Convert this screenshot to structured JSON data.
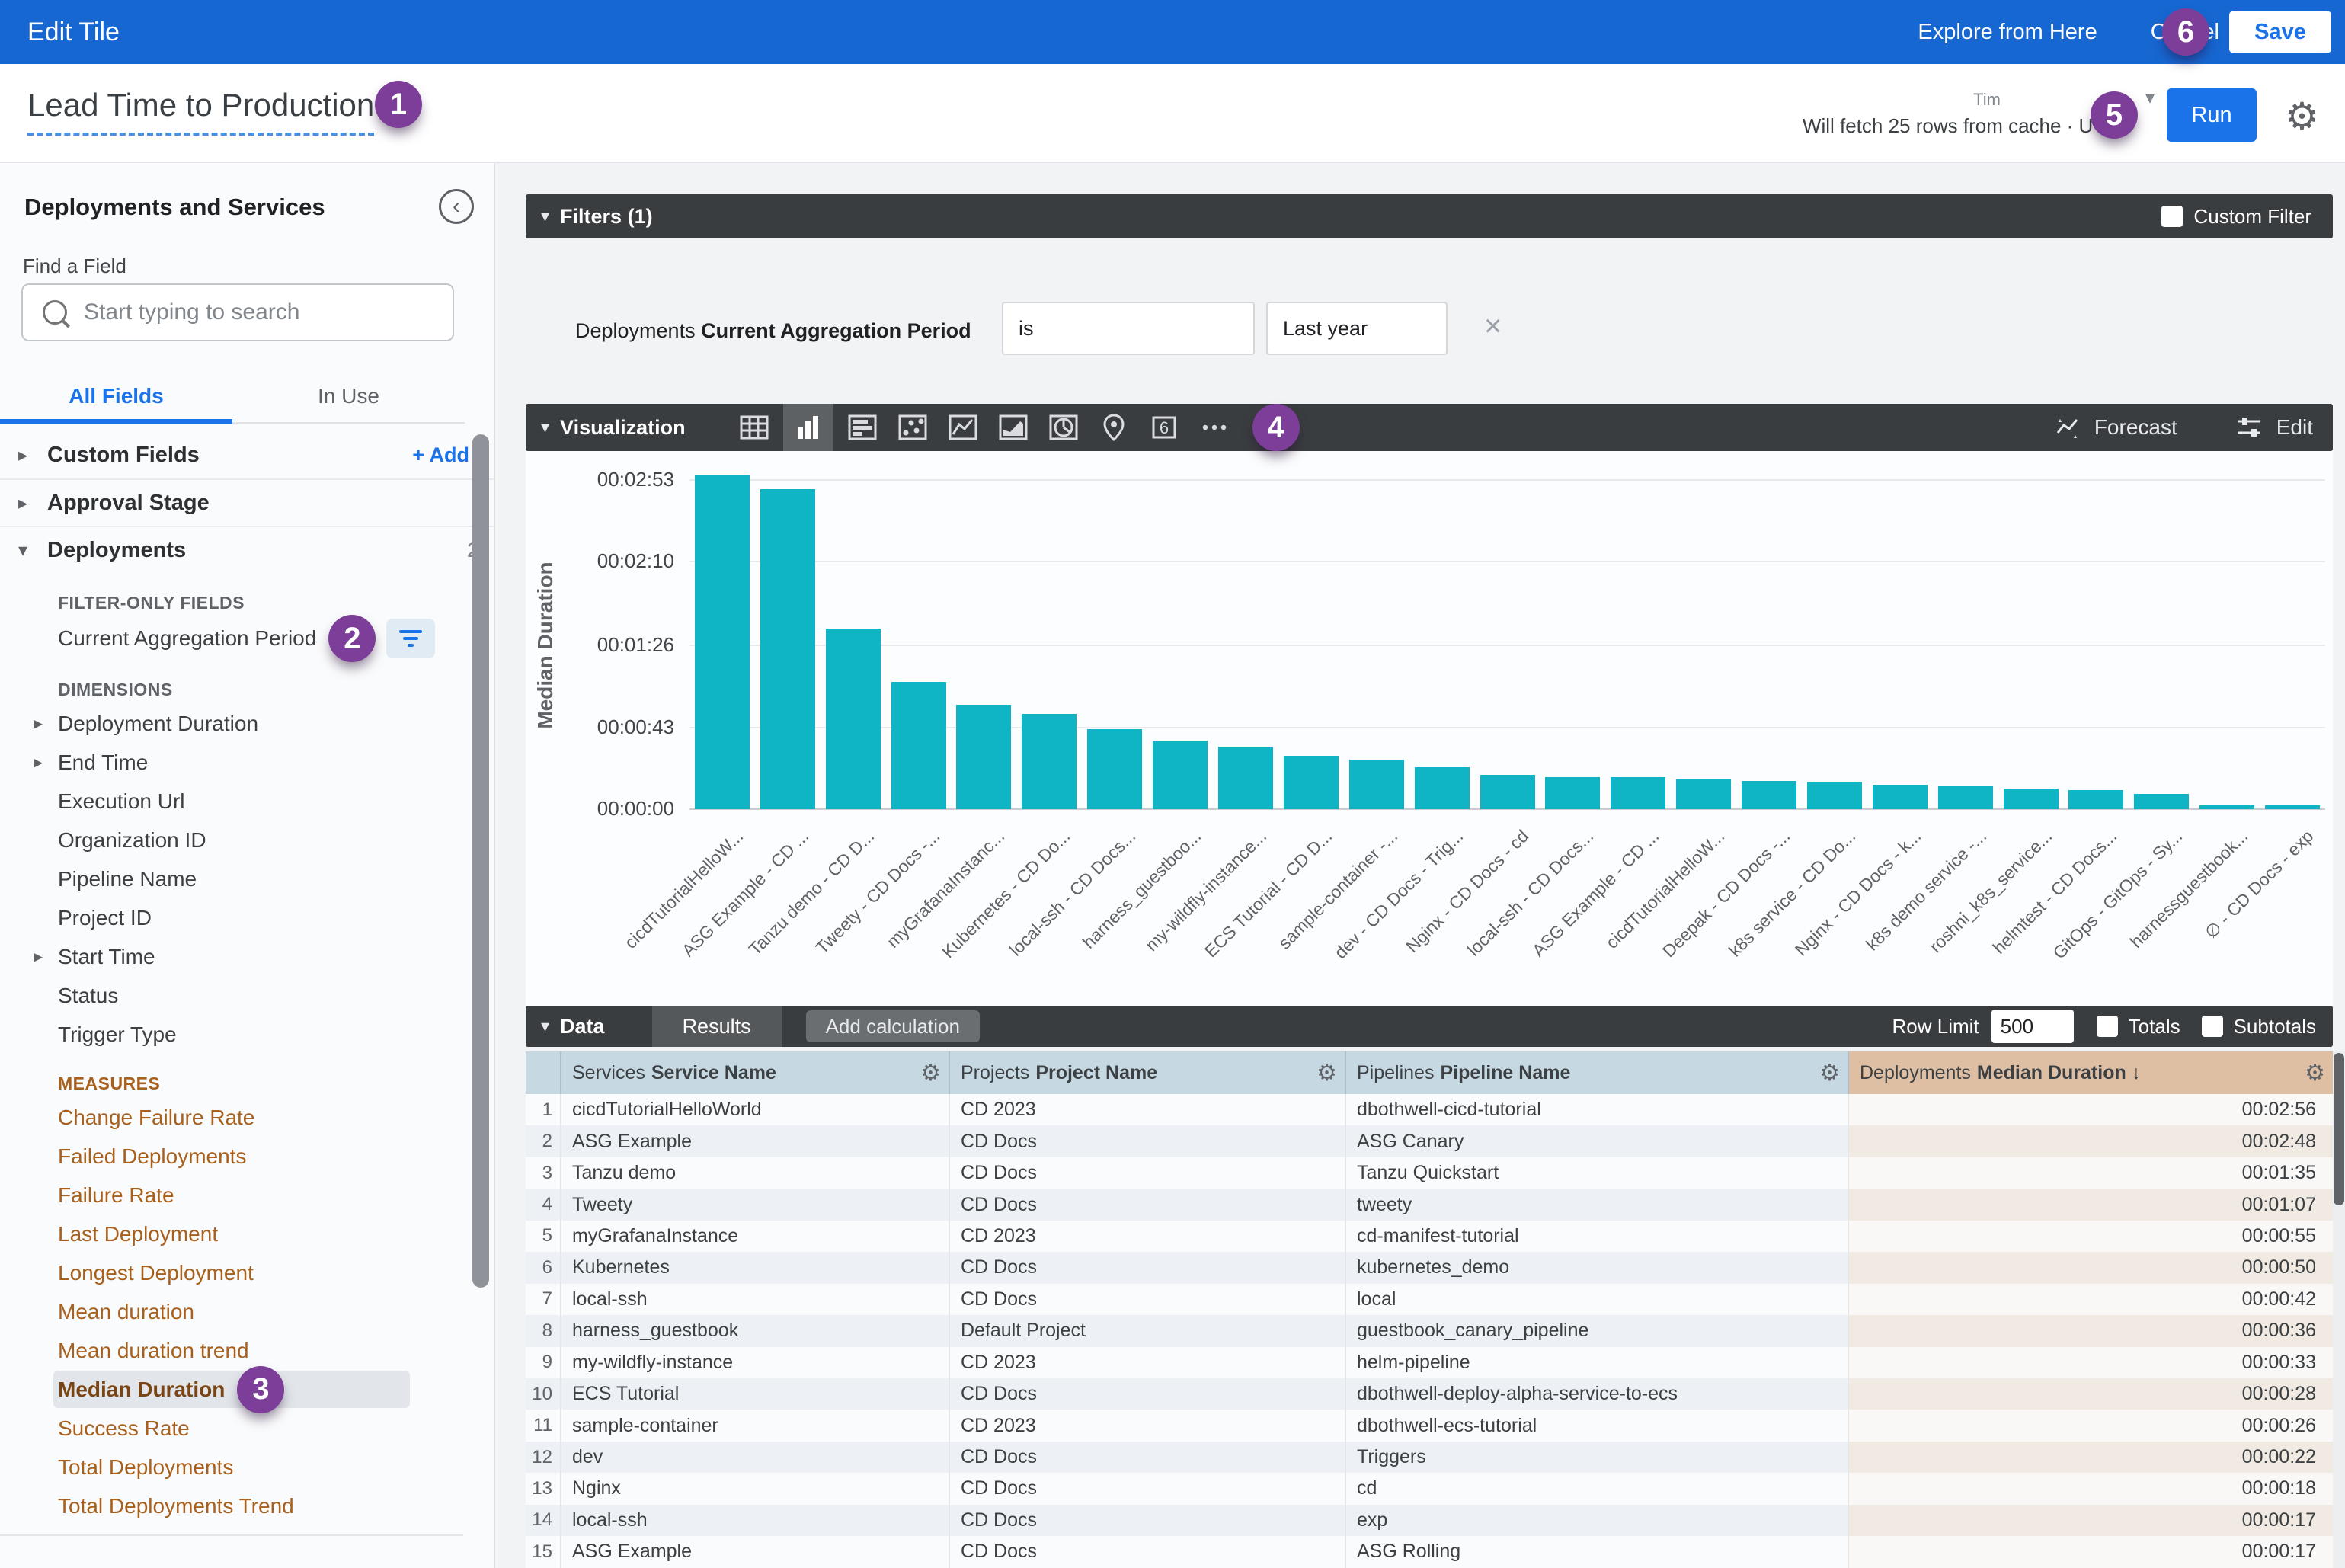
{
  "colors": {
    "topbar": "#1767d2",
    "accent": "#1a73e8",
    "bar_teal": "#0fb5c4",
    "badge_purple": "#7c3e98",
    "dark_bar": "#3a3d40",
    "measure_orange": "#a8601c",
    "header_blue": "#c6d9e3",
    "header_tan": "#debfa3"
  },
  "top_bar": {
    "title": "Edit Tile",
    "explore": "Explore from Here",
    "cancel": "Cancel",
    "save": "Save"
  },
  "header": {
    "tile_title": "Lead Time to Production",
    "fetch_status": "Will fetch 25 rows from cache · UTC",
    "timezone_fragment": "Tim",
    "run": "Run"
  },
  "sidebar": {
    "heading": "Deployments and Services",
    "find_label": "Find a Field",
    "search_placeholder": "Start typing to search",
    "tabs": [
      {
        "label": "All Fields",
        "active": true
      },
      {
        "label": "In Use",
        "active": false
      }
    ],
    "list": [
      {
        "t": "group",
        "label": "Custom Fields",
        "caret": "▸",
        "trail": "+ Add",
        "trail_kind": "link"
      },
      {
        "t": "group",
        "label": "Approval Stage",
        "caret": "▸"
      },
      {
        "t": "group",
        "label": "Deployments",
        "caret": "▾",
        "trail": "2",
        "trail_kind": "count"
      },
      {
        "t": "section",
        "label": "FILTER-ONLY FIELDS"
      },
      {
        "t": "item",
        "label": "Current Aggregation Period",
        "badge": "2",
        "filter_btn": true
      },
      {
        "t": "section",
        "label": "DIMENSIONS"
      },
      {
        "t": "item",
        "label": "Deployment Duration",
        "caret": "▸"
      },
      {
        "t": "item",
        "label": "End Time",
        "caret": "▸"
      },
      {
        "t": "item",
        "label": "Execution Url"
      },
      {
        "t": "item",
        "label": "Organization ID"
      },
      {
        "t": "item",
        "label": "Pipeline Name"
      },
      {
        "t": "item",
        "label": "Project ID"
      },
      {
        "t": "item",
        "label": "Start Time",
        "caret": "▸"
      },
      {
        "t": "item",
        "label": "Status"
      },
      {
        "t": "item",
        "label": "Trigger Type"
      },
      {
        "t": "section",
        "label": "MEASURES",
        "measure": true
      },
      {
        "t": "item",
        "label": "Change Failure Rate",
        "measure": true
      },
      {
        "t": "item",
        "label": "Failed Deployments",
        "measure": true
      },
      {
        "t": "item",
        "label": "Failure Rate",
        "measure": true
      },
      {
        "t": "item",
        "label": "Last Deployment",
        "measure": true
      },
      {
        "t": "item",
        "label": "Longest Deployment",
        "measure": true
      },
      {
        "t": "item",
        "label": "Mean duration",
        "measure": true
      },
      {
        "t": "item",
        "label": "Mean duration trend",
        "measure": true
      },
      {
        "t": "item",
        "label": "Median Duration",
        "measure": true,
        "selected": true,
        "badge": "3"
      },
      {
        "t": "item",
        "label": "Success Rate",
        "measure": true
      },
      {
        "t": "item",
        "label": "Total Deployments",
        "measure": true
      },
      {
        "t": "item",
        "label": "Total Deployments Trend",
        "measure": true
      }
    ]
  },
  "filters": {
    "title": "Filters (1)",
    "custom_filter": "Custom Filter",
    "row": {
      "prefix": "Deployments",
      "field": "Current Aggregation Period",
      "operator": "is",
      "value": "Last year"
    }
  },
  "visualization": {
    "title": "Visualization",
    "forecast": "Forecast",
    "edit": "Edit",
    "icons": [
      "table-viz",
      "bar-chart-viz",
      "horizontal-bar-viz",
      "scatter-viz",
      "line-viz",
      "area-viz",
      "pie-viz",
      "map-pin-viz",
      "single-value-viz",
      "more-viz"
    ],
    "selected_icon": "bar-chart-viz"
  },
  "chart_data": {
    "type": "bar",
    "ylabel": "Median Duration",
    "legend": false,
    "grid": true,
    "bar_color": "#0fb5c4",
    "yticks": [
      {
        "label": "00:02:53",
        "seconds": 173
      },
      {
        "label": "00:02:10",
        "seconds": 130
      },
      {
        "label": "00:01:26",
        "seconds": 86
      },
      {
        "label": "00:00:43",
        "seconds": 43
      },
      {
        "label": "00:00:00",
        "seconds": 0
      }
    ],
    "categories": [
      "cicdTutorialHelloW...",
      "ASG Example - CD ...",
      "Tanzu demo - CD D...",
      "Tweety - CD Docs -...",
      "myGrafanaInstanc...",
      "Kubernetes - CD Do...",
      "local-ssh - CD Docs...",
      "harness_guestboo...",
      "my-wildfly-instance...",
      "ECS Tutorial - CD D...",
      "sample-container -...",
      "dev - CD Docs - Trig...",
      "Nginx - CD Docs - cd",
      "local-ssh - CD Docs...",
      "ASG Example - CD ...",
      "cicdTutorialHelloW...",
      "Deepak - CD Docs -...",
      "k8s service - CD Do...",
      "Nginx - CD Docs - k...",
      "k8s demo service -...",
      "roshni_k8s_service...",
      "helmtest - CD Docs...",
      "GitOps - GitOps - Sy...",
      "harnessguestbook...",
      "∅ - CD Docs - exp"
    ],
    "values_seconds": [
      176,
      168,
      95,
      67,
      55,
      50,
      42,
      36,
      33,
      28,
      26,
      22,
      18,
      17,
      17,
      16,
      15,
      14,
      13,
      12,
      11,
      10,
      8,
      2,
      2
    ]
  },
  "data_section": {
    "title": "Data",
    "results_tab": "Results",
    "add_calculation": "Add calculation",
    "row_limit_label": "Row Limit",
    "row_limit_value": "500",
    "totals": "Totals",
    "subtotals": "Subtotals"
  },
  "table": {
    "headers": [
      {
        "group": "Services",
        "field": "Service Name"
      },
      {
        "group": "Projects",
        "field": "Project Name"
      },
      {
        "group": "Pipelines",
        "field": "Pipeline Name"
      },
      {
        "group": "Deployments",
        "field": "Median Duration",
        "sort": "↓"
      }
    ],
    "rows": [
      [
        "cicdTutorialHelloWorld",
        "CD 2023",
        "dbothwell-cicd-tutorial",
        "00:02:56"
      ],
      [
        "ASG Example",
        "CD Docs",
        "ASG Canary",
        "00:02:48"
      ],
      [
        "Tanzu demo",
        "CD Docs",
        "Tanzu Quickstart",
        "00:01:35"
      ],
      [
        "Tweety",
        "CD Docs",
        "tweety",
        "00:01:07"
      ],
      [
        "myGrafanaInstance",
        "CD 2023",
        "cd-manifest-tutorial",
        "00:00:55"
      ],
      [
        "Kubernetes",
        "CD Docs",
        "kubernetes_demo",
        "00:00:50"
      ],
      [
        "local-ssh",
        "CD Docs",
        "local",
        "00:00:42"
      ],
      [
        "harness_guestbook",
        "Default Project",
        "guestbook_canary_pipeline",
        "00:00:36"
      ],
      [
        "my-wildfly-instance",
        "CD 2023",
        "helm-pipeline",
        "00:00:33"
      ],
      [
        "ECS Tutorial",
        "CD Docs",
        "dbothwell-deploy-alpha-service-to-ecs",
        "00:00:28"
      ],
      [
        "sample-container",
        "CD 2023",
        "dbothwell-ecs-tutorial",
        "00:00:26"
      ],
      [
        "dev",
        "CD Docs",
        "Triggers",
        "00:00:22"
      ],
      [
        "Nginx",
        "CD Docs",
        "cd",
        "00:00:18"
      ],
      [
        "local-ssh",
        "CD Docs",
        "exp",
        "00:00:17"
      ],
      [
        "ASG Example",
        "CD Docs",
        "ASG Rolling",
        "00:00:17"
      ]
    ]
  },
  "annotations": [
    "1",
    "2",
    "3",
    "4",
    "5",
    "6"
  ]
}
